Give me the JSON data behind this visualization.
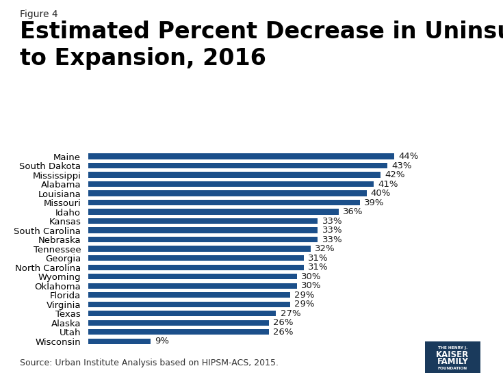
{
  "figure_label": "Figure 4",
  "title_line1": "Estimated Percent Decrease in Uninsured Population due",
  "title_line2": "to Expansion, 2016",
  "source": "Source: Urban Institute Analysis based on HIPSM-ACS, 2015.",
  "categories": [
    "Wisconsin",
    "Utah",
    "Alaska",
    "Texas",
    "Virginia",
    "Florida",
    "Oklahoma",
    "Wyoming",
    "North Carolina",
    "Georgia",
    "Tennessee",
    "Nebraska",
    "South Carolina",
    "Kansas",
    "Idaho",
    "Missouri",
    "Louisiana",
    "Alabama",
    "Mississippi",
    "South Dakota",
    "Maine"
  ],
  "values": [
    9,
    26,
    26,
    27,
    29,
    29,
    30,
    30,
    31,
    31,
    32,
    33,
    33,
    33,
    36,
    39,
    40,
    41,
    42,
    43,
    44
  ],
  "bar_color": "#1b4f8a",
  "label_color": "#1a1a1a",
  "background_color": "#ffffff",
  "bar_height": 0.62,
  "xlim": [
    0,
    52
  ],
  "title_fontsize": 24,
  "figure_label_fontsize": 10,
  "tick_fontsize": 9.5,
  "value_fontsize": 9.5,
  "source_fontsize": 9,
  "logo_bg_color": "#1a3a5c"
}
